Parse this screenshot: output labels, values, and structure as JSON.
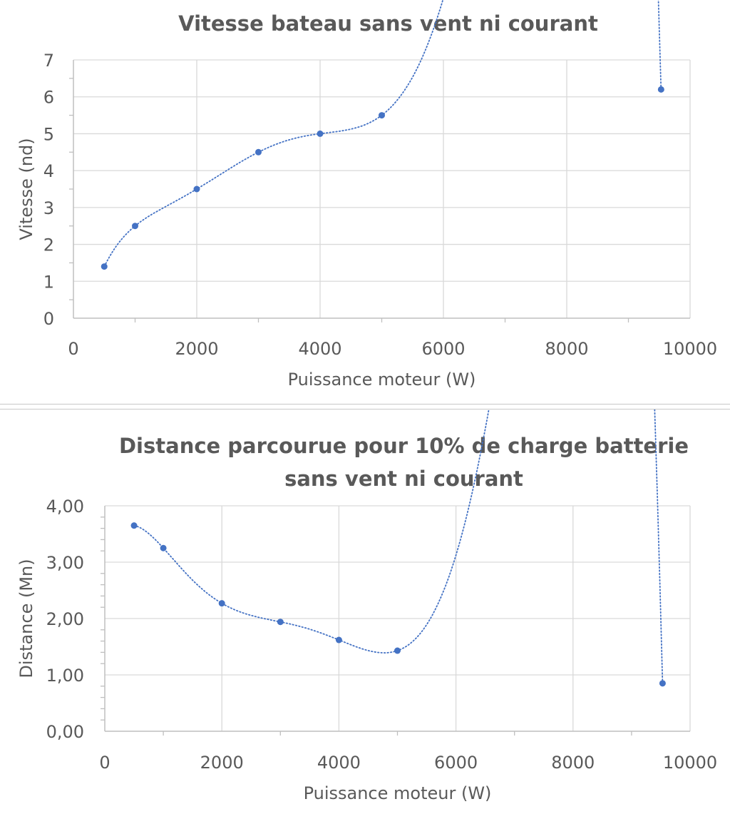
{
  "chart_data": [
    {
      "type": "scatter",
      "title": "Vitesse bateau sans vent ni courant",
      "xlabel": "Puissance moteur (W)",
      "ylabel": "Vitesse (nd)",
      "xlim": [
        0,
        10000
      ],
      "ylim": [
        0,
        7
      ],
      "x_ticks": [
        0,
        2000,
        4000,
        6000,
        8000,
        10000
      ],
      "y_ticks": [
        0,
        1,
        2,
        3,
        4,
        5,
        6,
        7
      ],
      "x_tick_labels": [
        "0",
        "2000",
        "4000",
        "6000",
        "8000",
        "10000"
      ],
      "y_tick_labels": [
        "0",
        "1",
        "2",
        "3",
        "4",
        "5",
        "6",
        "7"
      ],
      "grid": true,
      "trendline": "dotted polynomial",
      "series": [
        {
          "x": [
            500,
            1000,
            2000,
            3000,
            4000,
            5000,
            9530
          ],
          "y": [
            1.4,
            2.5,
            3.5,
            4.5,
            5.0,
            5.5,
            6.2
          ],
          "color": "#4472c4"
        }
      ]
    },
    {
      "type": "scatter",
      "title": "Distance parcourue pour 10% de charge batterie sans vent ni courant",
      "title_lines": [
        "Distance parcourue pour 10% de charge batterie",
        "sans vent ni courant"
      ],
      "xlabel": "Puissance moteur (W)",
      "ylabel": "Distance (Mn)",
      "xlim": [
        0,
        10000
      ],
      "ylim": [
        0,
        4
      ],
      "x_ticks": [
        0,
        2000,
        4000,
        6000,
        8000,
        10000
      ],
      "y_ticks": [
        0,
        1,
        2,
        3,
        4
      ],
      "x_tick_labels": [
        "0",
        "2000",
        "4000",
        "6000",
        "8000",
        "10000"
      ],
      "y_tick_labels": [
        "0,00",
        "1,00",
        "2,00",
        "3,00",
        "4,00"
      ],
      "grid": true,
      "trendline": "dotted polynomial",
      "series": [
        {
          "x": [
            500,
            1000,
            2000,
            3000,
            4000,
            5000,
            9530
          ],
          "y": [
            3.65,
            3.25,
            2.27,
            1.94,
            1.62,
            1.43,
            0.85
          ],
          "color": "#4472c4"
        }
      ]
    }
  ]
}
